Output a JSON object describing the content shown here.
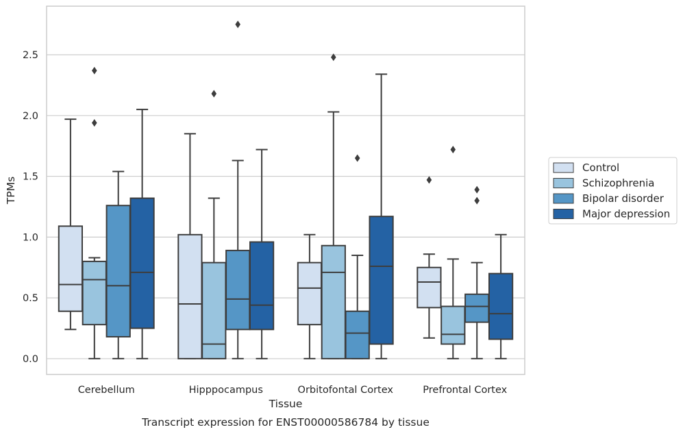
{
  "chart_data": {
    "type": "box",
    "title": "",
    "caption": "Transcript expression for ENST00000586784 by tissue",
    "xlabel": "Tissue",
    "ylabel": "TPMs",
    "ylim": [
      -0.13,
      2.9
    ],
    "yticks": [
      0.0,
      0.5,
      1.0,
      1.5,
      2.0,
      2.5
    ],
    "ytick_labels": [
      "0.0",
      "0.5",
      "1.0",
      "1.5",
      "2.0",
      "2.5"
    ],
    "categories": [
      "Cerebellum",
      "Hipppocampus",
      "Orbitofontal Cortex",
      "Prefrontal Cortex"
    ],
    "grid": "horizontal",
    "legend_position": "right",
    "series": [
      {
        "name": "Control",
        "color": "#d2e0f1",
        "boxes": [
          {
            "whislo": 0.24,
            "q1": 0.39,
            "med": 0.61,
            "q3": 1.09,
            "whishi": 1.97,
            "fliers": []
          },
          {
            "whislo": 0.0,
            "q1": 0.0,
            "med": 0.45,
            "q3": 1.02,
            "whishi": 1.85,
            "fliers": []
          },
          {
            "whislo": 0.0,
            "q1": 0.28,
            "med": 0.58,
            "q3": 0.79,
            "whishi": 1.02,
            "fliers": []
          },
          {
            "whislo": 0.17,
            "q1": 0.42,
            "med": 0.63,
            "q3": 0.75,
            "whishi": 0.86,
            "fliers": [
              1.47
            ]
          }
        ]
      },
      {
        "name": "Schizophrenia",
        "color": "#99c4de",
        "boxes": [
          {
            "whislo": 0.0,
            "q1": 0.28,
            "med": 0.65,
            "q3": 0.8,
            "whishi": 0.83,
            "fliers": [
              2.37,
              1.94
            ]
          },
          {
            "whislo": 0.0,
            "q1": 0.0,
            "med": 0.12,
            "q3": 0.79,
            "whishi": 1.32,
            "fliers": [
              2.18
            ]
          },
          {
            "whislo": 0.0,
            "q1": 0.0,
            "med": 0.71,
            "q3": 0.93,
            "whishi": 2.03,
            "fliers": [
              2.48
            ]
          },
          {
            "whislo": 0.0,
            "q1": 0.12,
            "med": 0.2,
            "q3": 0.43,
            "whishi": 0.82,
            "fliers": [
              1.72
            ]
          }
        ]
      },
      {
        "name": "Bipolar disorder",
        "color": "#5596c6",
        "boxes": [
          {
            "whislo": 0.0,
            "q1": 0.18,
            "med": 0.6,
            "q3": 1.26,
            "whishi": 1.54,
            "fliers": []
          },
          {
            "whislo": 0.0,
            "q1": 0.24,
            "med": 0.49,
            "q3": 0.89,
            "whishi": 1.63,
            "fliers": [
              2.75
            ]
          },
          {
            "whislo": 0.0,
            "q1": 0.0,
            "med": 0.21,
            "q3": 0.39,
            "whishi": 0.85,
            "fliers": [
              1.65
            ]
          },
          {
            "whislo": 0.0,
            "q1": 0.3,
            "med": 0.43,
            "q3": 0.53,
            "whishi": 0.79,
            "fliers": [
              1.39,
              1.3
            ]
          }
        ]
      },
      {
        "name": "Major depression",
        "color": "#2462a4",
        "boxes": [
          {
            "whislo": 0.0,
            "q1": 0.25,
            "med": 0.71,
            "q3": 1.32,
            "whishi": 2.05,
            "fliers": []
          },
          {
            "whislo": 0.0,
            "q1": 0.24,
            "med": 0.44,
            "q3": 0.96,
            "whishi": 1.72,
            "fliers": []
          },
          {
            "whislo": 0.0,
            "q1": 0.12,
            "med": 0.76,
            "q3": 1.17,
            "whishi": 2.34,
            "fliers": []
          },
          {
            "whislo": 0.0,
            "q1": 0.16,
            "med": 0.37,
            "q3": 0.7,
            "whishi": 1.02,
            "fliers": []
          }
        ]
      }
    ]
  },
  "colors": {
    "frame": "#cccccc",
    "grid": "#cccccc",
    "box_edge": "#3d3d3d",
    "text": "#262626"
  }
}
